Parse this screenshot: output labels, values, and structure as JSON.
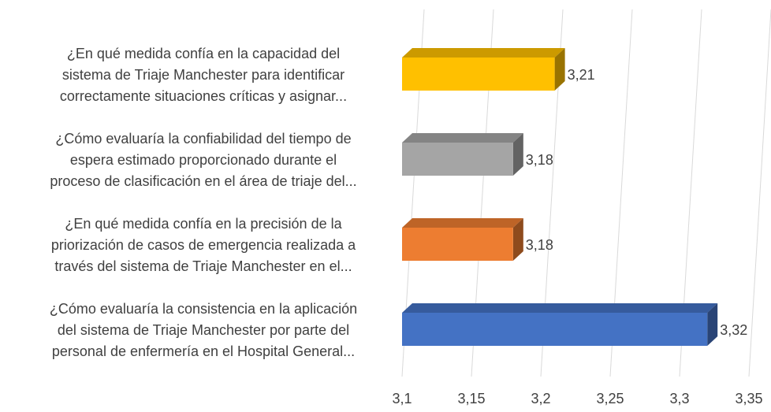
{
  "chart_data": {
    "type": "bar3d_horizontal",
    "categories": [
      [
        "¿En qué medida confía en la capacidad del",
        "sistema de Triaje Manchester para identificar",
        "correctamente situaciones críticas y asignar..."
      ],
      [
        "¿Cómo evaluaría la confiabilidad del tiempo de",
        "espera estimado proporcionado durante el",
        "proceso de clasificación en el área de triaje del..."
      ],
      [
        "¿En qué medida confía en la precisión de la",
        "priorización de casos de emergencia realizada a",
        "través del sistema de Triaje Manchester en el..."
      ],
      [
        "¿Cómo evaluaría la consistencia en la aplicación",
        "del sistema de Triaje Manchester por parte del",
        "personal de enfermería en el Hospital General..."
      ]
    ],
    "values": [
      3.21,
      3.18,
      3.18,
      3.32
    ],
    "value_labels": [
      "3,21",
      "3,18",
      "3,18",
      "3,32"
    ],
    "colors": [
      "#FFC000",
      "#A5A5A5",
      "#ED7D31",
      "#4472C4"
    ],
    "xlim": [
      3.1,
      3.35
    ],
    "xticks": [
      {
        "value": 3.1,
        "label": "3,1"
      },
      {
        "value": 3.15,
        "label": "3,15"
      },
      {
        "value": 3.2,
        "label": "3,2"
      },
      {
        "value": 3.25,
        "label": "3,25"
      },
      {
        "value": 3.3,
        "label": "3,3"
      },
      {
        "value": 3.35,
        "label": "3,35"
      }
    ],
    "grid": true
  }
}
